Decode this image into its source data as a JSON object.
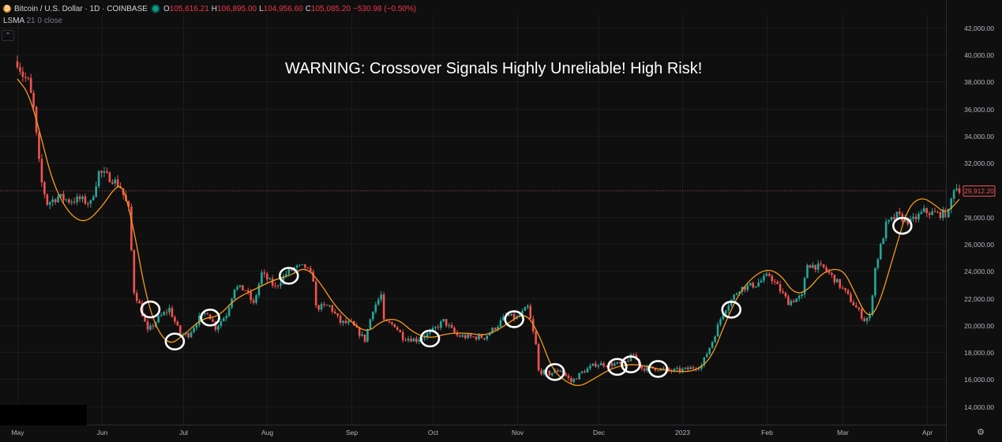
{
  "header": {
    "symbol_title": "Bitcoin / U.S. Dollar · 1D · COINBASE",
    "ohlc": [
      {
        "k": "O",
        "v": "105,616.21"
      },
      {
        "k": "H",
        "v": "106,895.00"
      },
      {
        "k": "L",
        "v": "104,956.60"
      },
      {
        "k": "C",
        "v": "105,085.20"
      }
    ],
    "change": "−530.98 (−0.50%)",
    "indicator_name": "LSMA",
    "indicator_params": "21 0 close"
  },
  "annotation": "WARNING: Crossover Signals Highly Unreliable! High Risk!",
  "price_badge": "29,912.20",
  "colors": {
    "up": "#26a69a",
    "down": "#ef5350",
    "lsma": "#f59b1a",
    "bg": "#0f0f0f",
    "grid": "#1e1e1e"
  },
  "chart_data": {
    "type": "candlestick",
    "x_axis": {
      "type": "date",
      "start": "2022-05-01",
      "end": "2023-04-13",
      "tick_labels": [
        {
          "label": "May",
          "date": "2022-05-01"
        },
        {
          "label": "Jun",
          "date": "2022-06-01"
        },
        {
          "label": "Jul",
          "date": "2022-07-01"
        },
        {
          "label": "Aug",
          "date": "2022-08-01"
        },
        {
          "label": "Sep",
          "date": "2022-09-01"
        },
        {
          "label": "Oct",
          "date": "2022-10-01"
        },
        {
          "label": "Nov",
          "date": "2022-11-01"
        },
        {
          "label": "Dec",
          "date": "2022-12-01"
        },
        {
          "label": "2023",
          "date": "2023-01-01"
        },
        {
          "label": "Feb",
          "date": "2023-02-01"
        },
        {
          "label": "Mar",
          "date": "2023-03-01"
        },
        {
          "label": "Apr",
          "date": "2023-04-01"
        }
      ]
    },
    "y_axis": {
      "range": [
        13000,
        43000
      ],
      "tick_values": [
        14000,
        16000,
        18000,
        20000,
        22000,
        24000,
        26000,
        28000,
        30000,
        32000,
        34000,
        36000,
        38000,
        40000,
        42000
      ],
      "tick_labels": [
        "14,000.00",
        "16,000.00",
        "18,000.00",
        "20,000.00",
        "22,000.00",
        "24,000.00",
        "26,000.00",
        "28,000.00",
        "30,000.00",
        "32,000.00",
        "34,000.00",
        "36,000.00",
        "38,000.00",
        "40,000.00",
        "42,000.00"
      ]
    },
    "price_path": [
      [
        "2022-05-01",
        39500
      ],
      [
        "2022-05-03",
        38500
      ],
      [
        "2022-05-05",
        38000
      ],
      [
        "2022-05-07",
        36000
      ],
      [
        "2022-05-09",
        32000
      ],
      [
        "2022-05-10",
        30500
      ],
      [
        "2022-05-12",
        29000
      ],
      [
        "2022-05-16",
        29500
      ],
      [
        "2022-05-20",
        29200
      ],
      [
        "2022-05-24",
        29300
      ],
      [
        "2022-05-28",
        29000
      ],
      [
        "2022-05-31",
        31300
      ],
      [
        "2022-06-05",
        30800
      ],
      [
        "2022-06-08",
        30200
      ],
      [
        "2022-06-11",
        28500
      ],
      [
        "2022-06-13",
        22500
      ],
      [
        "2022-06-15",
        21500
      ],
      [
        "2022-06-18",
        19500
      ],
      [
        "2022-06-22",
        20500
      ],
      [
        "2022-06-26",
        21200
      ],
      [
        "2022-06-30",
        19300
      ],
      [
        "2022-07-03",
        19300
      ],
      [
        "2022-07-07",
        20500
      ],
      [
        "2022-07-10",
        21000
      ],
      [
        "2022-07-13",
        19800
      ],
      [
        "2022-07-17",
        20800
      ],
      [
        "2022-07-20",
        22800
      ],
      [
        "2022-07-24",
        22600
      ],
      [
        "2022-07-27",
        21500
      ],
      [
        "2022-07-30",
        23800
      ],
      [
        "2022-08-04",
        22800
      ],
      [
        "2022-08-08",
        23800
      ],
      [
        "2022-08-11",
        24200
      ],
      [
        "2022-08-15",
        24300
      ],
      [
        "2022-08-18",
        23400
      ],
      [
        "2022-08-19",
        21300
      ],
      [
        "2022-08-24",
        21400
      ],
      [
        "2022-08-28",
        20200
      ],
      [
        "2022-09-01",
        20100
      ],
      [
        "2022-09-06",
        18900
      ],
      [
        "2022-09-09",
        21200
      ],
      [
        "2022-09-12",
        22200
      ],
      [
        "2022-09-13",
        20200
      ],
      [
        "2022-09-17",
        20000
      ],
      [
        "2022-09-20",
        19100
      ],
      [
        "2022-09-25",
        18900
      ],
      [
        "2022-09-30",
        19400
      ],
      [
        "2022-10-05",
        20300
      ],
      [
        "2022-10-10",
        19200
      ],
      [
        "2022-10-15",
        19100
      ],
      [
        "2022-10-20",
        19100
      ],
      [
        "2022-10-25",
        20000
      ],
      [
        "2022-10-28",
        20700
      ],
      [
        "2022-11-01",
        20500
      ],
      [
        "2022-11-05",
        21300
      ],
      [
        "2022-11-08",
        18500
      ],
      [
        "2022-11-09",
        16600
      ],
      [
        "2022-11-13",
        16400
      ],
      [
        "2022-11-17",
        16700
      ],
      [
        "2022-11-21",
        15800
      ],
      [
        "2022-11-25",
        16500
      ],
      [
        "2022-11-30",
        17100
      ],
      [
        "2022-12-05",
        17100
      ],
      [
        "2022-12-10",
        17100
      ],
      [
        "2022-12-14",
        17800
      ],
      [
        "2022-12-17",
        16800
      ],
      [
        "2022-12-22",
        16800
      ],
      [
        "2022-12-28",
        16600
      ],
      [
        "2023-01-02",
        16700
      ],
      [
        "2023-01-08",
        17000
      ],
      [
        "2023-01-12",
        18800
      ],
      [
        "2023-01-16",
        21000
      ],
      [
        "2023-01-22",
        22700
      ],
      [
        "2023-01-28",
        23000
      ],
      [
        "2023-02-02",
        23700
      ],
      [
        "2023-02-09",
        21700
      ],
      [
        "2023-02-14",
        22100
      ],
      [
        "2023-02-16",
        24500
      ],
      [
        "2023-02-22",
        24200
      ],
      [
        "2023-02-26",
        23400
      ],
      [
        "2023-03-02",
        22400
      ],
      [
        "2023-03-09",
        20400
      ],
      [
        "2023-03-11",
        20600
      ],
      [
        "2023-03-13",
        24200
      ],
      [
        "2023-03-17",
        27400
      ],
      [
        "2023-03-21",
        28100
      ],
      [
        "2023-03-26",
        27600
      ],
      [
        "2023-03-31",
        28400
      ],
      [
        "2023-04-05",
        28200
      ],
      [
        "2023-04-09",
        28300
      ],
      [
        "2023-04-11",
        30200
      ],
      [
        "2023-04-13",
        30100
      ]
    ],
    "lsma": [
      [
        "2022-05-01",
        38200
      ],
      [
        "2022-05-05",
        37200
      ],
      [
        "2022-05-09",
        34500
      ],
      [
        "2022-05-14",
        30500
      ],
      [
        "2022-05-20",
        28200
      ],
      [
        "2022-05-26",
        27500
      ],
      [
        "2022-06-01",
        28700
      ],
      [
        "2022-06-06",
        30200
      ],
      [
        "2022-06-09",
        30300
      ],
      [
        "2022-06-13",
        27000
      ],
      [
        "2022-06-17",
        22500
      ],
      [
        "2022-06-21",
        19800
      ],
      [
        "2022-06-26",
        18500
      ],
      [
        "2022-07-01",
        19200
      ],
      [
        "2022-07-08",
        20500
      ],
      [
        "2022-07-14",
        20600
      ],
      [
        "2022-07-20",
        21900
      ],
      [
        "2022-07-27",
        22600
      ],
      [
        "2022-08-03",
        23300
      ],
      [
        "2022-08-10",
        23700
      ],
      [
        "2022-08-15",
        24300
      ],
      [
        "2022-08-20",
        23300
      ],
      [
        "2022-08-26",
        21400
      ],
      [
        "2022-09-01",
        20200
      ],
      [
        "2022-09-07",
        19400
      ],
      [
        "2022-09-12",
        20300
      ],
      [
        "2022-09-18",
        20500
      ],
      [
        "2022-09-24",
        19400
      ],
      [
        "2022-09-30",
        19000
      ],
      [
        "2022-10-07",
        19400
      ],
      [
        "2022-10-14",
        19400
      ],
      [
        "2022-10-21",
        19200
      ],
      [
        "2022-10-28",
        20000
      ],
      [
        "2022-11-04",
        21000
      ],
      [
        "2022-11-09",
        19400
      ],
      [
        "2022-11-14",
        16700
      ],
      [
        "2022-11-19",
        15800
      ],
      [
        "2022-11-24",
        15400
      ],
      [
        "2022-11-30",
        16100
      ],
      [
        "2022-12-06",
        16800
      ],
      [
        "2022-12-12",
        17100
      ],
      [
        "2022-12-18",
        17000
      ],
      [
        "2022-12-24",
        16700
      ],
      [
        "2023-01-01",
        16500
      ],
      [
        "2023-01-07",
        16700
      ],
      [
        "2023-01-12",
        17700
      ],
      [
        "2023-01-17",
        20300
      ],
      [
        "2023-01-23",
        22800
      ],
      [
        "2023-01-31",
        24200
      ],
      [
        "2023-02-06",
        23800
      ],
      [
        "2023-02-11",
        22300
      ],
      [
        "2023-02-16",
        22500
      ],
      [
        "2023-02-22",
        24000
      ],
      [
        "2023-03-01",
        24200
      ],
      [
        "2023-03-05",
        22600
      ],
      [
        "2023-03-10",
        20500
      ],
      [
        "2023-03-14",
        21200
      ],
      [
        "2023-03-20",
        25300
      ],
      [
        "2023-03-25",
        28700
      ],
      [
        "2023-03-30",
        29500
      ],
      [
        "2023-04-04",
        28900
      ],
      [
        "2023-04-08",
        28200
      ],
      [
        "2023-04-13",
        29300
      ]
    ],
    "signal_circles": [
      "2022-06-19",
      "2022-06-28",
      "2022-07-11",
      "2022-08-09",
      "2022-09-30",
      "2022-10-31",
      "2022-11-15",
      "2022-12-08",
      "2022-12-13",
      "2022-12-23",
      "2023-01-19",
      "2023-03-23"
    ],
    "last_price": 29912.2
  }
}
